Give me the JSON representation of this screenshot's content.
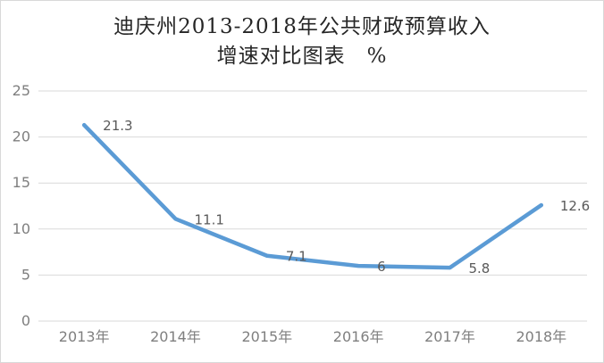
{
  "frame": {
    "background": "#ffffff",
    "border_color": "#d9d9d9"
  },
  "chart_data": {
    "type": "line",
    "title_line1": "迪庆州2013-2018年公共财政预算收入",
    "title_line2": "增速对比图表　%",
    "categories": [
      "2013年",
      "2014年",
      "2015年",
      "2016年",
      "2017年",
      "2018年"
    ],
    "values": [
      21.3,
      11.1,
      7.1,
      6,
      5.8,
      12.6
    ],
    "data_labels": [
      "21.3",
      "11.1",
      "7.1",
      "6",
      "5.8",
      "12.6"
    ],
    "xlabel": "",
    "ylabel": "",
    "ylim": [
      0,
      25
    ],
    "yticks": [
      0,
      5,
      10,
      15,
      20,
      25
    ],
    "grid": true,
    "legend_position": "none",
    "colors": {
      "line": "#5B9BD5",
      "grid": "#D9D9D9",
      "axis_text": "#7f7f7f",
      "data_label": "#595959",
      "title_text": "#262626"
    }
  }
}
